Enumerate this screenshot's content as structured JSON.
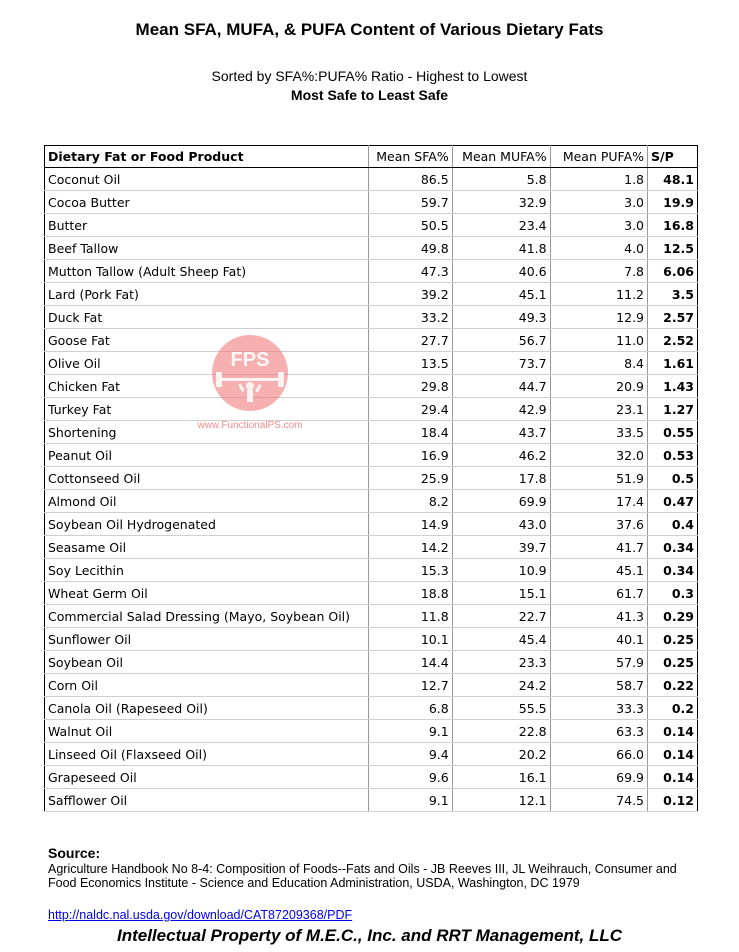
{
  "title": "Mean SFA, MUFA, & PUFA Content of Various Dietary Fats",
  "subtitle": "Sorted by SFA%:PUFA% Ratio - Highest to Lowest",
  "subtitle2": "Most Safe to Least Safe",
  "table": {
    "headers": [
      "Dietary Fat or Food Product",
      "Mean SFA%",
      "Mean MUFA%",
      "Mean PUFA%",
      "S/P"
    ],
    "rows": [
      [
        "Coconut Oil",
        "86.5",
        "5.8",
        "1.8",
        "48.1"
      ],
      [
        "Cocoa Butter",
        "59.7",
        "32.9",
        "3.0",
        "19.9"
      ],
      [
        "Butter",
        "50.5",
        "23.4",
        "3.0",
        "16.8"
      ],
      [
        "Beef Tallow",
        "49.8",
        "41.8",
        "4.0",
        "12.5"
      ],
      [
        "Mutton Tallow (Adult Sheep Fat)",
        "47.3",
        "40.6",
        "7.8",
        "6.06"
      ],
      [
        "Lard (Pork Fat)",
        "39.2",
        "45.1",
        "11.2",
        "3.5"
      ],
      [
        "Duck Fat",
        "33.2",
        "49.3",
        "12.9",
        "2.57"
      ],
      [
        "Goose Fat",
        "27.7",
        "56.7",
        "11.0",
        "2.52"
      ],
      [
        "Olive Oil",
        "13.5",
        "73.7",
        "8.4",
        "1.61"
      ],
      [
        "Chicken Fat",
        "29.8",
        "44.7",
        "20.9",
        "1.43"
      ],
      [
        "Turkey Fat",
        "29.4",
        "42.9",
        "23.1",
        "1.27"
      ],
      [
        "Shortening",
        "18.4",
        "43.7",
        "33.5",
        "0.55"
      ],
      [
        "Peanut Oil",
        "16.9",
        "46.2",
        "32.0",
        "0.53"
      ],
      [
        "Cottonseed Oil",
        "25.9",
        "17.8",
        "51.9",
        "0.5"
      ],
      [
        "Almond Oil",
        "8.2",
        "69.9",
        "17.4",
        "0.47"
      ],
      [
        "Soybean Oil Hydrogenated",
        "14.9",
        "43.0",
        "37.6",
        "0.4"
      ],
      [
        "Seasame Oil",
        "14.2",
        "39.7",
        "41.7",
        "0.34"
      ],
      [
        "Soy Lecithin",
        "15.3",
        "10.9",
        "45.1",
        "0.34"
      ],
      [
        "Wheat Germ Oil",
        "18.8",
        "15.1",
        "61.7",
        "0.3"
      ],
      [
        "Commercial Salad Dressing (Mayo, Soybean Oil)",
        "11.8",
        "22.7",
        "41.3",
        "0.29"
      ],
      [
        "Sunflower Oil",
        "10.1",
        "45.4",
        "40.1",
        "0.25"
      ],
      [
        "Soybean Oil",
        "14.4",
        "23.3",
        "57.9",
        "0.25"
      ],
      [
        "Corn Oil",
        "12.7",
        "24.2",
        "58.7",
        "0.22"
      ],
      [
        "Canola Oil (Rapeseed Oil)",
        "6.8",
        "55.5",
        "33.3",
        "0.2"
      ],
      [
        "Walnut Oil",
        "9.1",
        "22.8",
        "63.3",
        "0.14"
      ],
      [
        "Linseed Oil (Flaxseed Oil)",
        "9.4",
        "20.2",
        "66.0",
        "0.14"
      ],
      [
        "Grapeseed Oil",
        "9.6",
        "16.1",
        "69.9",
        "0.14"
      ],
      [
        "Safflower Oil",
        "9.1",
        "12.1",
        "74.5",
        "0.12"
      ]
    ]
  },
  "watermark": {
    "logo_text": "FPS",
    "url_text": "www.FunctionalPS.com",
    "color": "#f07070"
  },
  "source": {
    "label": "Source:",
    "text": "Agriculture Handbook No 8-4: Composition of Foods--Fats and Oils - JB Reeves III, JL Weihrauch, Consumer and Food Economics Institute - Science and Education Administration, USDA, Washington, DC 1979",
    "link": "http://naldc.nal.usda.gov/download/CAT87209368/PDF"
  },
  "footer": "Intellectual Property of M.E.C., Inc. and RRT Management, LLC"
}
